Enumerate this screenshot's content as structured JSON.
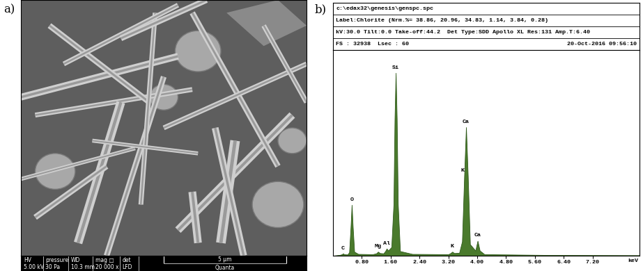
{
  "image_panel": {
    "label": "a)",
    "info_bar": {
      "headers": [
        "HV",
        "pressure",
        "WD",
        "mag □",
        "det"
      ],
      "values": [
        "5.00 kV",
        "30 Pa",
        "10.3 mm",
        "20 000 x",
        "LFD"
      ],
      "scale_bar": "5 µm",
      "instrument": "Quanta"
    }
  },
  "chart_data": {
    "type": "area",
    "panel_label": "b)",
    "header": [
      [
        "c:\\edax32\\genesis\\genspc.spc"
      ],
      [
        "Label:Chlorite (Nrm.%= 38.86, 20.96, 34.83, 1.14, 3.84, 0.28)"
      ],
      [
        "kV:30.0 Tilt:0.0 Take-off:44.2  Det Type:SDD Apollo XL Res:131 Amp.T:6.40"
      ],
      [
        "FS : 32938  Lsec : 60",
        "20-Oct-2016 09:56:10"
      ]
    ],
    "x_label": "keV",
    "x": [
      0.0,
      0.2,
      0.25,
      0.28,
      0.31,
      0.4,
      0.45,
      0.49,
      0.52,
      0.55,
      0.59,
      0.7,
      1.1,
      1.2,
      1.25,
      1.3,
      1.4,
      1.45,
      1.49,
      1.53,
      1.62,
      1.68,
      1.71,
      1.74,
      1.77,
      1.8,
      1.86,
      2.2,
      3.2,
      3.26,
      3.31,
      3.36,
      3.5,
      3.58,
      3.64,
      3.69,
      3.74,
      3.8,
      3.95,
      4.01,
      4.07,
      4.2,
      6.0,
      8.5
    ],
    "values": [
      0,
      150,
      250,
      400,
      250,
      200,
      600,
      5000,
      8900,
      5000,
      700,
      300,
      250,
      400,
      700,
      450,
      400,
      800,
      1250,
      900,
      1500,
      9000,
      24000,
      32000,
      24000,
      9000,
      800,
      300,
      250,
      450,
      700,
      450,
      500,
      2500,
      14000,
      22500,
      14000,
      2000,
      900,
      2600,
      900,
      250,
      120,
      80
    ],
    "color": "#4a7a2c",
    "peak_labels": [
      {
        "text": "C",
        "x": 0.28,
        "y": 400
      },
      {
        "text": "O",
        "x": 0.52,
        "y": 8900
      },
      {
        "text": "Mg",
        "x": 1.25,
        "y": 700
      },
      {
        "text": "Al",
        "x": 1.49,
        "y": 1250
      },
      {
        "text": "Si",
        "x": 1.74,
        "y": 32000
      },
      {
        "text": "K",
        "x": 3.31,
        "y": 700
      },
      {
        "text": "K",
        "x": 3.6,
        "y": 14000
      },
      {
        "text": "Ca",
        "x": 3.69,
        "y": 22500
      },
      {
        "text": "Ca",
        "x": 4.01,
        "y": 2600
      }
    ],
    "xlim": [
      0,
      8.5
    ],
    "ylim": [
      0,
      36000
    ],
    "xticks": [
      {
        "value": 0.8,
        "label": "0.80"
      },
      {
        "value": 1.6,
        "label": "1.60"
      },
      {
        "value": 2.4,
        "label": "2.40"
      },
      {
        "value": 3.2,
        "label": "3.20"
      },
      {
        "value": 4.0,
        "label": "4.00"
      },
      {
        "value": 4.8,
        "label": "4.80"
      },
      {
        "value": 5.6,
        "label": "5.60"
      },
      {
        "value": 6.4,
        "label": "6.40"
      },
      {
        "value": 7.2,
        "label": "7.20"
      }
    ],
    "tick_labels": "x",
    "grid": false
  }
}
